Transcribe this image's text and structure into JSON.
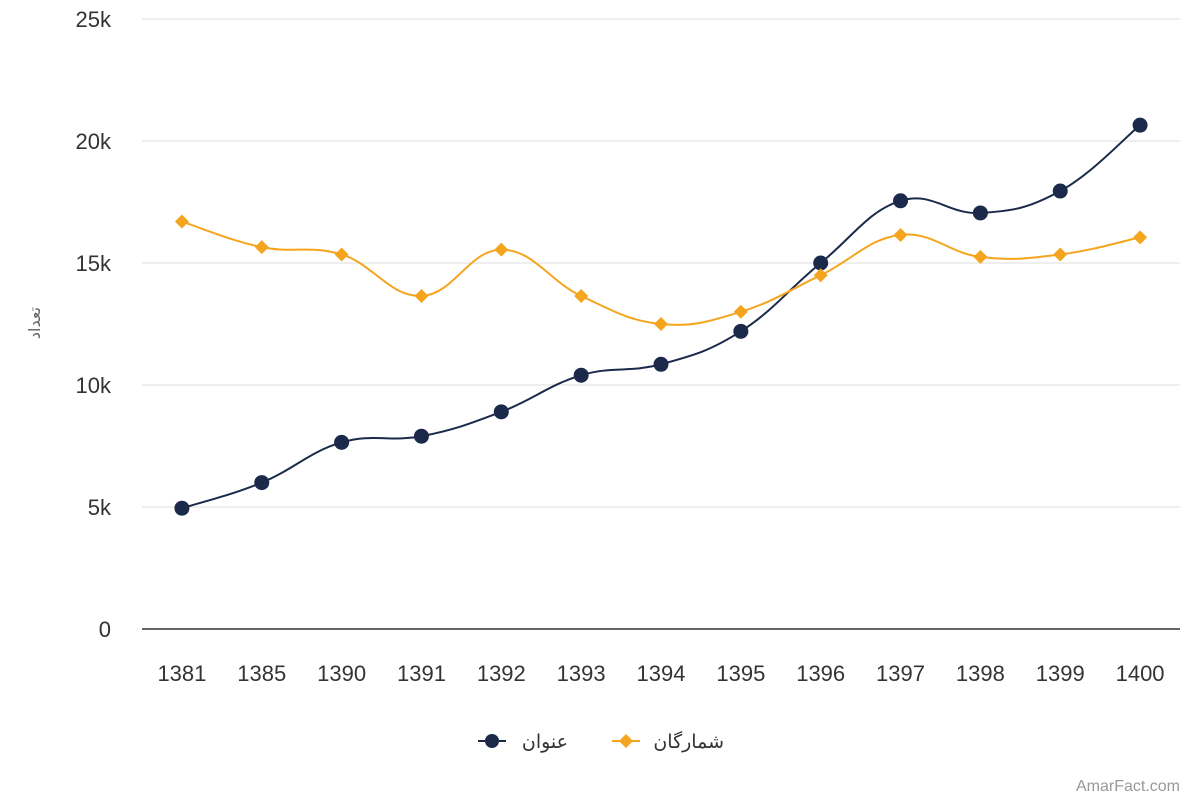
{
  "chart_data": {
    "type": "line",
    "categories": [
      "1381",
      "1385",
      "1390",
      "1391",
      "1392",
      "1393",
      "1394",
      "1395",
      "1396",
      "1397",
      "1398",
      "1399",
      "1400"
    ],
    "series": [
      {
        "name": "عنوان",
        "color": "#1b2a4a",
        "marker": "circle",
        "values": [
          4950,
          6000,
          7650,
          7900,
          8900,
          10400,
          10850,
          12200,
          15000,
          17550,
          17050,
          17950,
          20650
        ]
      },
      {
        "name": "شمارگان",
        "color": "#f5a51d",
        "marker": "diamond",
        "values": [
          16700,
          15650,
          15350,
          13650,
          15550,
          13650,
          12500,
          13000,
          14500,
          16150,
          15250,
          15350,
          16050
        ]
      }
    ],
    "ylabel": "تعداد",
    "ylim": [
      0,
      25000
    ],
    "yticks": [
      {
        "value": 0,
        "label": "0"
      },
      {
        "value": 5000,
        "label": "5k"
      },
      {
        "value": 10000,
        "label": "10k"
      },
      {
        "value": 15000,
        "label": "15k"
      },
      {
        "value": 20000,
        "label": "20k"
      },
      {
        "value": 25000,
        "label": "25k"
      }
    ],
    "grid": true,
    "legend_position": "bottom-center",
    "smooth": true
  },
  "credit": "AmarFact.com"
}
